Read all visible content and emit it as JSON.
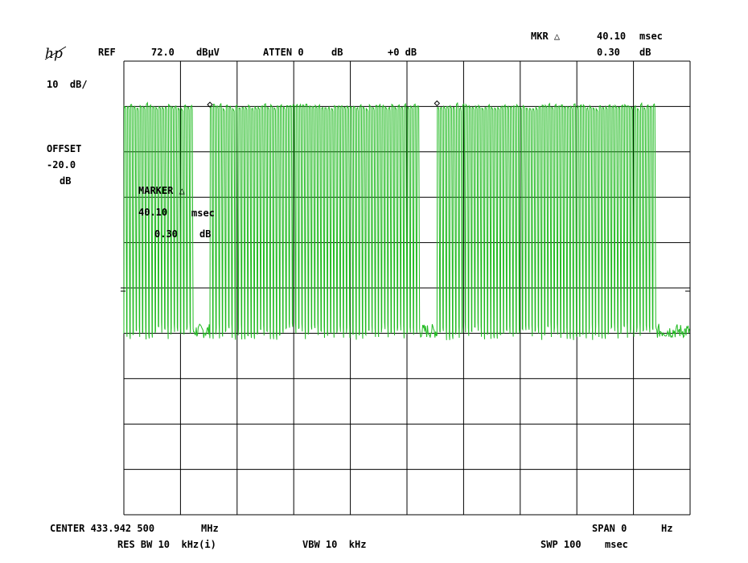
{
  "brand": {
    "logo_text": "hp"
  },
  "header": {
    "ref_label": "REF",
    "ref_value": "72.0",
    "ref_unit": "dBµV",
    "atten_label": "ATTEN 0",
    "atten_unit": "dB",
    "ref_offset": "+0 dB",
    "mkr_label": "MKR △",
    "mkr_time": "40.10",
    "mkr_time_unit": "msec",
    "mkr_level": "0.30",
    "mkr_level_unit": "dB"
  },
  "left_panel": {
    "scale": "10  dB/",
    "offset_label": "OFFSET",
    "offset_value": "-20.0",
    "offset_unit": "dB"
  },
  "marker_annotation": {
    "label": "MARKER △",
    "time": "40.10",
    "time_unit": "msec",
    "level": "0.30",
    "level_unit": "dB"
  },
  "footer": {
    "center_label": "CENTER 433.942 500",
    "center_unit": "MHz",
    "span_label": "SPAN 0",
    "span_unit": "Hz",
    "res_bw": "RES BW 10  kHz(i)",
    "vbw": "VBW 10  kHz",
    "swp_label": "SWP 100",
    "swp_unit": "msec"
  },
  "colors": {
    "trace": "#22bb22",
    "grid": "#000000",
    "background": "#ffffff"
  },
  "chart_data": {
    "type": "line",
    "xlim": [
      0,
      100
    ],
    "x_unit": "msec",
    "ylim": [
      -28,
      72
    ],
    "y_unit": "dBµV",
    "grid": true,
    "divisions": {
      "x": 10,
      "y": 10
    },
    "high_level": 62,
    "noise_level": 12.5,
    "bursts": [
      {
        "start": 0.0,
        "end": 12.3,
        "pulses": 22
      },
      {
        "start": 15.2,
        "end": 52.3,
        "pulses": 66
      },
      {
        "start": 55.3,
        "end": 94.0,
        "pulses": 69
      }
    ],
    "markers": [
      {
        "x": 15.2,
        "y": 62.4
      },
      {
        "x": 55.3,
        "y": 62.7
      }
    ]
  }
}
